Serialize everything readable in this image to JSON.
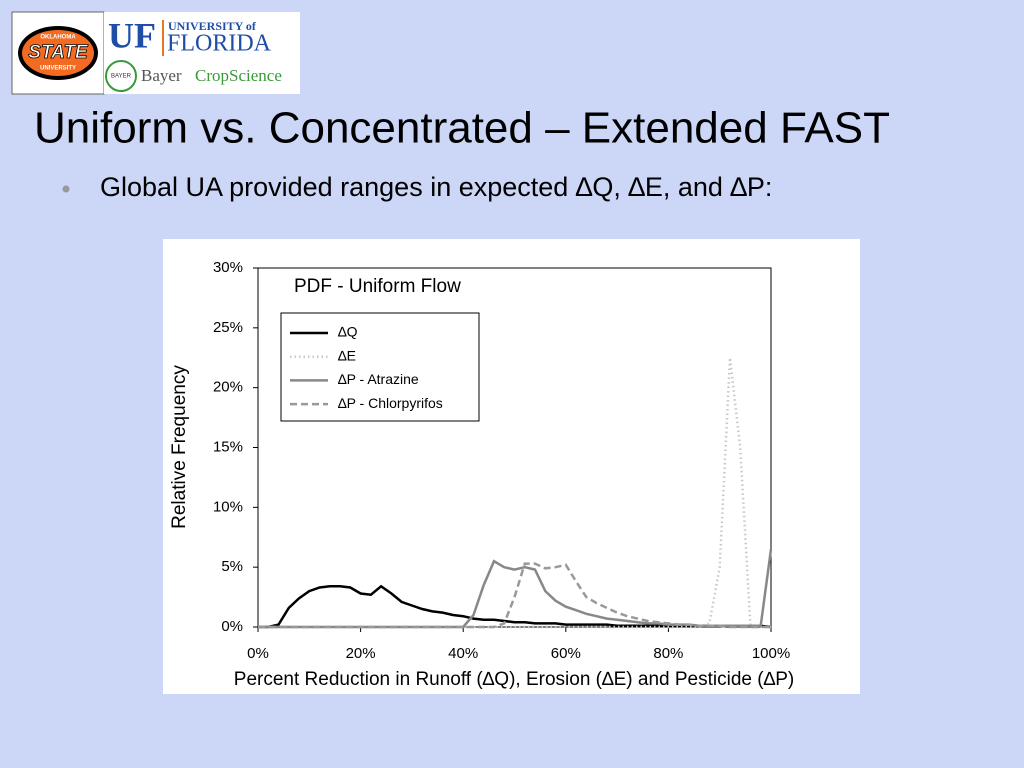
{
  "slide": {
    "title": "Uniform vs. Concentrated – Extended FAST",
    "bullet": "Global UA provided ranges in expected ∆Q, ∆E, and ∆P:"
  },
  "logos": {
    "osu_top": "OKLAHOMA",
    "osu_main": "STATE",
    "osu_bottom": "UNIVERSITY",
    "uf_mark": "UF",
    "uf_university": "UNIVERSITY of",
    "uf_florida": "FLORIDA",
    "bayer_cross": "BAYER",
    "bayer_name": "Bayer",
    "bayer_crop": "CropScience"
  },
  "chart_data": {
    "type": "line",
    "annotation": "PDF - Uniform Flow",
    "x_label": "Percent Reduction in Runoff (∆Q), Erosion (∆E) and Pesticide (∆P)",
    "y_label": "Relative Frequency",
    "x": [
      0,
      2,
      4,
      6,
      8,
      10,
      12,
      14,
      16,
      18,
      20,
      22,
      24,
      26,
      28,
      30,
      32,
      34,
      36,
      38,
      40,
      42,
      44,
      46,
      48,
      50,
      52,
      54,
      56,
      58,
      60,
      62,
      64,
      66,
      68,
      70,
      72,
      74,
      76,
      78,
      80,
      82,
      84,
      86,
      88,
      90,
      92,
      94,
      96,
      98,
      100
    ],
    "xlim": [
      0,
      100
    ],
    "xticks": [
      {
        "value": 0,
        "label": "0%"
      },
      {
        "value": 20,
        "label": "20%"
      },
      {
        "value": 40,
        "label": "40%"
      },
      {
        "value": 60,
        "label": "60%"
      },
      {
        "value": 80,
        "label": "80%"
      },
      {
        "value": 100,
        "label": "100%"
      }
    ],
    "ylim": [
      0,
      30
    ],
    "yticks": [
      {
        "value": 0,
        "label": "0%"
      },
      {
        "value": 5,
        "label": "5%"
      },
      {
        "value": 10,
        "label": "10%"
      },
      {
        "value": 15,
        "label": "15%"
      },
      {
        "value": 20,
        "label": "20%"
      },
      {
        "value": 25,
        "label": "25%"
      },
      {
        "value": 30,
        "label": "30%"
      }
    ],
    "grid": false,
    "legend": "upper left",
    "series": [
      {
        "name": "∆Q",
        "color": "#000000",
        "linestyle": "solid",
        "values": [
          0,
          0,
          0.2,
          1.6,
          2.4,
          3.0,
          3.3,
          3.4,
          3.4,
          3.3,
          2.8,
          2.7,
          3.4,
          2.8,
          2.1,
          1.8,
          1.5,
          1.3,
          1.2,
          1.0,
          0.9,
          0.7,
          0.6,
          0.6,
          0.5,
          0.4,
          0.4,
          0.3,
          0.3,
          0.3,
          0.2,
          0.2,
          0.2,
          0.2,
          0.2,
          0.1,
          0.1,
          0.1,
          0.1,
          0.1,
          0.1,
          0.1,
          0.1,
          0.1,
          0.1,
          0.1,
          0.1,
          0.1,
          0.1,
          0.1,
          0
        ]
      },
      {
        "name": "∆E",
        "color": "#c8c8c8",
        "linestyle": "dotted",
        "values": [
          0,
          0,
          0,
          0,
          0,
          0,
          0,
          0,
          0,
          0,
          0,
          0,
          0,
          0,
          0,
          0,
          0,
          0,
          0,
          0,
          0,
          0,
          0,
          0,
          0,
          0,
          0,
          0,
          0,
          0,
          0,
          0,
          0,
          0,
          0,
          0,
          0,
          0,
          0,
          0,
          0,
          0,
          0,
          0,
          0.3,
          5,
          22.5,
          15,
          0,
          0,
          0
        ]
      },
      {
        "name": "∆P - Atrazine",
        "color": "#888888",
        "linestyle": "solid",
        "values": [
          0,
          0,
          0,
          0,
          0,
          0,
          0,
          0,
          0,
          0,
          0,
          0,
          0,
          0,
          0,
          0,
          0,
          0,
          0,
          0,
          0,
          1.0,
          3.5,
          5.5,
          5.0,
          4.8,
          5.0,
          4.8,
          3.0,
          2.2,
          1.7,
          1.4,
          1.1,
          0.9,
          0.7,
          0.6,
          0.5,
          0.4,
          0.3,
          0.3,
          0.2,
          0.2,
          0.2,
          0.1,
          0.1,
          0.1,
          0.1,
          0.1,
          0.1,
          0.1,
          6.5
        ]
      },
      {
        "name": "∆P - Chlorpyrifos",
        "color": "#999999",
        "linestyle": "dashed",
        "values": [
          0,
          0,
          0,
          0,
          0,
          0,
          0,
          0,
          0,
          0,
          0,
          0,
          0,
          0,
          0,
          0,
          0,
          0,
          0,
          0,
          0,
          0,
          0,
          0,
          0.3,
          2.5,
          5.3,
          5.3,
          4.9,
          5.0,
          5.2,
          3.8,
          2.5,
          2.0,
          1.6,
          1.2,
          0.9,
          0.7,
          0.5,
          0.4,
          0.3,
          0.2,
          0.2,
          0.1,
          0.1,
          0.1,
          0,
          0,
          0,
          0,
          0
        ]
      }
    ]
  }
}
